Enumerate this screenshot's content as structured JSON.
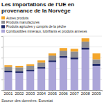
{
  "chart_data": {
    "type": "bar",
    "stacked": true,
    "title": "Les importations de l'UE en provenance de la Norvège",
    "subtitle": "Source des données: Eurostat",
    "categories": [
      "2001",
      "2002",
      "2003",
      "2004",
      "2005",
      "2006",
      "2007",
      "2008",
      "2009"
    ],
    "series": [
      {
        "name": "Autres produits",
        "color": "#f4a62a",
        "values": [
          3,
          3,
          3,
          4,
          4,
          5,
          5,
          6,
          11
        ]
      },
      {
        "name": "Produits manufacturés",
        "color": "#8f8f94",
        "values": [
          7,
          7,
          7,
          8,
          9,
          10,
          11,
          11,
          8
        ]
      },
      {
        "name": "Produits agricoles y compris de la pêche",
        "color": "#1f2868",
        "values": [
          3,
          3,
          3,
          3,
          3,
          3,
          3.5,
          4,
          4
        ]
      },
      {
        "name": "Combustibles minéraux, lubrifiants et produits annexes",
        "color": "#aba5d8",
        "values": [
          33,
          32,
          35,
          40,
          52,
          60,
          57,
          75,
          45
        ]
      }
    ],
    "ylim": [
      0,
      100
    ],
    "yticks": [
      0,
      20,
      40,
      60,
      80,
      100
    ],
    "grid": true,
    "legend": "top",
    "tick_labels": "x"
  }
}
